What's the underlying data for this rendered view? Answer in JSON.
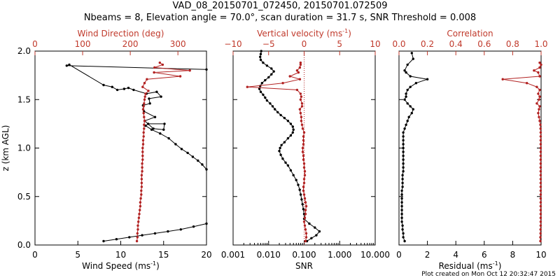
{
  "header": {
    "title_line1": "VAD_08_20150701_072450, 20150701.072509",
    "title_line2": "Nbeams = 8, Elevation angle = 70.0°, scan duration = 31.7 s, SNR Threshold = 0.008"
  },
  "footer": {
    "text": "Plot created on Mon Oct 12 20:32:47 2015"
  },
  "colors": {
    "black_series": "#000000",
    "red_series": "#b22222",
    "red_axis": "#c0392b",
    "axis": "#000000"
  },
  "chart_data": [
    {
      "type": "line",
      "panel": "left",
      "ylabel": "z (km AGL)",
      "ylim": [
        0.0,
        2.0
      ],
      "yticks": [
        0.0,
        0.5,
        1.0,
        1.5,
        2.0
      ],
      "ytick_labels": [
        "0.0",
        "0.5",
        "1.0",
        "1.5",
        "2.0"
      ],
      "bottom_axis": {
        "label": "Wind Speed (ms",
        "label_sup": "-1",
        "label_end": ")",
        "range": [
          0,
          20
        ],
        "ticks": [
          0,
          5,
          10,
          15,
          20
        ],
        "tick_labels": [
          "0",
          "5",
          "10",
          "15",
          "20"
        ]
      },
      "top_axis": {
        "label": "Wind Direction (deg)",
        "range": [
          0,
          360
        ],
        "ticks": [
          0,
          100,
          200,
          300
        ],
        "tick_labels": [
          "0",
          "100",
          "200",
          "300"
        ]
      },
      "series": [
        {
          "axis": "bottom",
          "color": "black",
          "x": [
            8.0,
            9.5,
            11.0,
            12.5,
            14.0,
            15.5,
            17.0,
            18.5,
            20.0
          ],
          "y": [
            0.04,
            0.06,
            0.08,
            0.1,
            0.12,
            0.14,
            0.16,
            0.19,
            0.22
          ]
        },
        {
          "axis": "bottom",
          "color": "black",
          "x": [
            20.0,
            19.5,
            19.0,
            18.4,
            17.8,
            17.1,
            16.4,
            15.6,
            14.6,
            13.6,
            12.9,
            13.2,
            15.1,
            15.0,
            13.8,
            12.8,
            14.0,
            12.7,
            12.6,
            13.4,
            13.3,
            14.7,
            14.2,
            13.0,
            11.5,
            10.9,
            10.4,
            9.6,
            9.0,
            8.0,
            4.0,
            3.7,
            20.0
          ],
          "y": [
            0.78,
            0.83,
            0.87,
            0.91,
            0.95,
            0.99,
            1.04,
            1.1,
            1.15,
            1.19,
            1.23,
            1.25,
            1.25,
            1.19,
            1.2,
            1.28,
            1.32,
            1.38,
            1.44,
            1.46,
            1.51,
            1.53,
            1.58,
            1.56,
            1.6,
            1.62,
            1.61,
            1.6,
            1.63,
            1.65,
            1.86,
            1.85,
            1.81
          ]
        },
        {
          "axis": "top",
          "color": "red",
          "x": [
            214,
            215,
            215,
            216,
            216,
            217,
            218,
            219,
            220,
            221,
            221,
            222,
            223,
            223,
            224,
            224,
            224,
            224,
            225,
            225,
            225,
            226,
            226,
            226,
            226,
            227,
            227,
            228,
            228,
            229,
            229,
            230,
            229,
            228,
            227,
            228,
            229,
            230,
            231,
            232,
            238,
            226,
            230,
            235,
            305,
            250,
            325,
            251,
            268,
            262
          ],
          "y": [
            0.04,
            0.08,
            0.12,
            0.16,
            0.2,
            0.24,
            0.28,
            0.32,
            0.36,
            0.4,
            0.44,
            0.48,
            0.52,
            0.56,
            0.6,
            0.64,
            0.68,
            0.72,
            0.76,
            0.8,
            0.84,
            0.88,
            0.92,
            0.96,
            1.0,
            1.04,
            1.08,
            1.12,
            1.16,
            1.2,
            1.24,
            1.28,
            1.32,
            1.36,
            1.4,
            1.43,
            1.46,
            1.5,
            1.53,
            1.56,
            1.59,
            1.63,
            1.67,
            1.71,
            1.74,
            1.78,
            1.8,
            1.83,
            1.86,
            1.88
          ]
        }
      ]
    },
    {
      "type": "line",
      "panel": "middle",
      "ylim": [
        0.0,
        2.0
      ],
      "bottom_axis": {
        "label": "SNR",
        "scale": "log",
        "range": [
          0.001,
          10.0
        ],
        "ticks": [
          0.001,
          0.01,
          0.1,
          1.0,
          10.0
        ],
        "tick_labels": [
          "0.001",
          "0.010",
          "0.100",
          "1.000",
          "10.000"
        ]
      },
      "top_axis": {
        "label": "Vertical velocity (ms",
        "label_sup": "-1",
        "label_end": ")",
        "range": [
          -10,
          10
        ],
        "ticks": [
          -10,
          -5,
          0,
          5,
          10
        ],
        "tick_labels": [
          "−10",
          "−5",
          "0",
          "5",
          "10"
        ]
      },
      "series": [
        {
          "axis": "bottom",
          "color": "black",
          "x": [
            0.12,
            0.16,
            0.22,
            0.27,
            0.2,
            0.14,
            0.1,
            0.1,
            0.095,
            0.09,
            0.085,
            0.08,
            0.075,
            0.068,
            0.06,
            0.05,
            0.042,
            0.035,
            0.03,
            0.025,
            0.022,
            0.02,
            0.021,
            0.023,
            0.028,
            0.035,
            0.042,
            0.048,
            0.05,
            0.048,
            0.042,
            0.035,
            0.028,
            0.022,
            0.018,
            0.015,
            0.013,
            0.011,
            0.009,
            0.008,
            0.007,
            0.006,
            0.0055,
            0.0058,
            0.0065,
            0.008,
            0.01,
            0.012,
            0.014,
            0.012,
            0.009,
            0.007,
            0.006,
            0.0058,
            0.006,
            0.0062
          ],
          "y": [
            0.04,
            0.07,
            0.1,
            0.14,
            0.18,
            0.22,
            0.27,
            0.32,
            0.37,
            0.42,
            0.47,
            0.52,
            0.57,
            0.62,
            0.67,
            0.72,
            0.77,
            0.82,
            0.85,
            0.89,
            0.93,
            0.97,
            1.0,
            1.03,
            1.06,
            1.1,
            1.13,
            1.16,
            1.19,
            1.22,
            1.25,
            1.28,
            1.31,
            1.34,
            1.37,
            1.4,
            1.43,
            1.46,
            1.49,
            1.52,
            1.55,
            1.58,
            1.61,
            1.64,
            1.67,
            1.7,
            1.73,
            1.76,
            1.79,
            1.82,
            1.85,
            1.88,
            1.91,
            1.94,
            1.97,
            2.0
          ]
        },
        {
          "axis": "top",
          "color": "red",
          "x": [
            0.2,
            0.3,
            0.3,
            0.2,
            0.1,
            0.0,
            0.1,
            0.2,
            0.2,
            0.3,
            0.2,
            0.1,
            0.0,
            -0.1,
            -0.1,
            0.0,
            0.0,
            0.1,
            0.1,
            0.0,
            0.0,
            -0.1,
            -0.1,
            -0.2,
            -0.2,
            -0.1,
            -0.1,
            -0.1,
            0.0,
            -0.2,
            -0.3,
            -0.4,
            -0.4,
            -0.5,
            -0.6,
            -0.3,
            -0.3,
            -0.5,
            -0.4,
            -0.5,
            -1.0,
            -8.0,
            -3.0,
            -0.6,
            -2.0,
            -0.8,
            -1.0,
            -0.6,
            -0.5,
            -0.5
          ],
          "y": [
            0.04,
            0.08,
            0.12,
            0.16,
            0.2,
            0.24,
            0.28,
            0.32,
            0.36,
            0.4,
            0.44,
            0.48,
            0.52,
            0.56,
            0.6,
            0.64,
            0.68,
            0.72,
            0.76,
            0.8,
            0.84,
            0.88,
            0.92,
            0.96,
            1.0,
            1.04,
            1.08,
            1.12,
            1.16,
            1.2,
            1.24,
            1.28,
            1.32,
            1.36,
            1.4,
            1.43,
            1.46,
            1.5,
            1.53,
            1.56,
            1.6,
            1.63,
            1.67,
            1.71,
            1.74,
            1.78,
            1.8,
            1.83,
            1.86,
            1.88
          ]
        }
      ]
    },
    {
      "type": "line",
      "panel": "right",
      "ylim": [
        0.0,
        2.0
      ],
      "bottom_axis": {
        "label": "Residual (ms",
        "label_sup": "-1",
        "label_end": ")",
        "range": [
          0,
          10
        ],
        "ticks": [
          0,
          2,
          4,
          6,
          8,
          10
        ],
        "tick_labels": [
          "0",
          "2",
          "4",
          "6",
          "8",
          "10"
        ]
      },
      "top_axis": {
        "label": "Correlation",
        "range": [
          0.0,
          1.0
        ],
        "ticks": [
          0.0,
          0.2,
          0.4,
          0.6,
          0.8,
          1.0
        ],
        "tick_labels": [
          "0.0",
          "0.2",
          "0.4",
          "0.6",
          "0.8",
          "1.0"
        ]
      },
      "series": [
        {
          "axis": "bottom",
          "color": "black",
          "x": [
            0.4,
            0.3,
            0.3,
            0.25,
            0.25,
            0.2,
            0.2,
            0.2,
            0.2,
            0.2,
            0.2,
            0.2,
            0.2,
            0.2,
            0.25,
            0.25,
            0.25,
            0.25,
            0.3,
            0.3,
            0.3,
            0.3,
            0.3,
            0.3,
            0.3,
            0.3,
            0.3,
            0.3,
            0.3,
            0.4,
            0.5,
            0.6,
            0.7,
            0.9,
            1.0,
            0.8,
            0.6,
            0.4,
            0.5,
            0.5,
            0.6,
            0.8,
            1.2,
            2.0,
            0.8,
            0.5,
            0.4,
            0.6,
            1.0,
            0.9
          ],
          "y": [
            0.04,
            0.08,
            0.12,
            0.16,
            0.2,
            0.24,
            0.28,
            0.32,
            0.36,
            0.4,
            0.44,
            0.48,
            0.52,
            0.56,
            0.6,
            0.64,
            0.68,
            0.72,
            0.76,
            0.8,
            0.84,
            0.88,
            0.92,
            0.96,
            1.0,
            1.04,
            1.08,
            1.12,
            1.16,
            1.2,
            1.24,
            1.28,
            1.32,
            1.36,
            1.4,
            1.43,
            1.46,
            1.5,
            1.53,
            1.56,
            1.6,
            1.63,
            1.67,
            1.71,
            1.74,
            1.78,
            1.8,
            1.86,
            1.92,
            1.98
          ]
        },
        {
          "axis": "top",
          "color": "red",
          "x": [
            0.995,
            0.995,
            0.996,
            0.996,
            0.997,
            0.997,
            0.997,
            0.997,
            0.997,
            0.997,
            0.997,
            0.997,
            0.997,
            0.997,
            0.997,
            0.997,
            0.997,
            0.997,
            0.997,
            0.997,
            0.997,
            0.997,
            0.997,
            0.997,
            0.997,
            0.997,
            0.997,
            0.997,
            0.997,
            0.996,
            0.995,
            0.99,
            0.985,
            0.98,
            0.985,
            0.99,
            0.97,
            0.985,
            0.99,
            0.98,
            0.99,
            0.97,
            0.9,
            0.73,
            0.99,
            0.98,
            0.95,
            0.99,
            1.0,
            0.99
          ],
          "y": [
            0.04,
            0.08,
            0.12,
            0.16,
            0.2,
            0.24,
            0.28,
            0.32,
            0.36,
            0.4,
            0.44,
            0.48,
            0.52,
            0.56,
            0.6,
            0.64,
            0.68,
            0.72,
            0.76,
            0.8,
            0.84,
            0.88,
            0.92,
            0.96,
            1.0,
            1.04,
            1.08,
            1.12,
            1.16,
            1.2,
            1.24,
            1.28,
            1.32,
            1.36,
            1.4,
            1.43,
            1.46,
            1.5,
            1.53,
            1.56,
            1.6,
            1.63,
            1.67,
            1.71,
            1.74,
            1.78,
            1.8,
            1.83,
            1.86,
            1.88
          ]
        }
      ]
    }
  ]
}
